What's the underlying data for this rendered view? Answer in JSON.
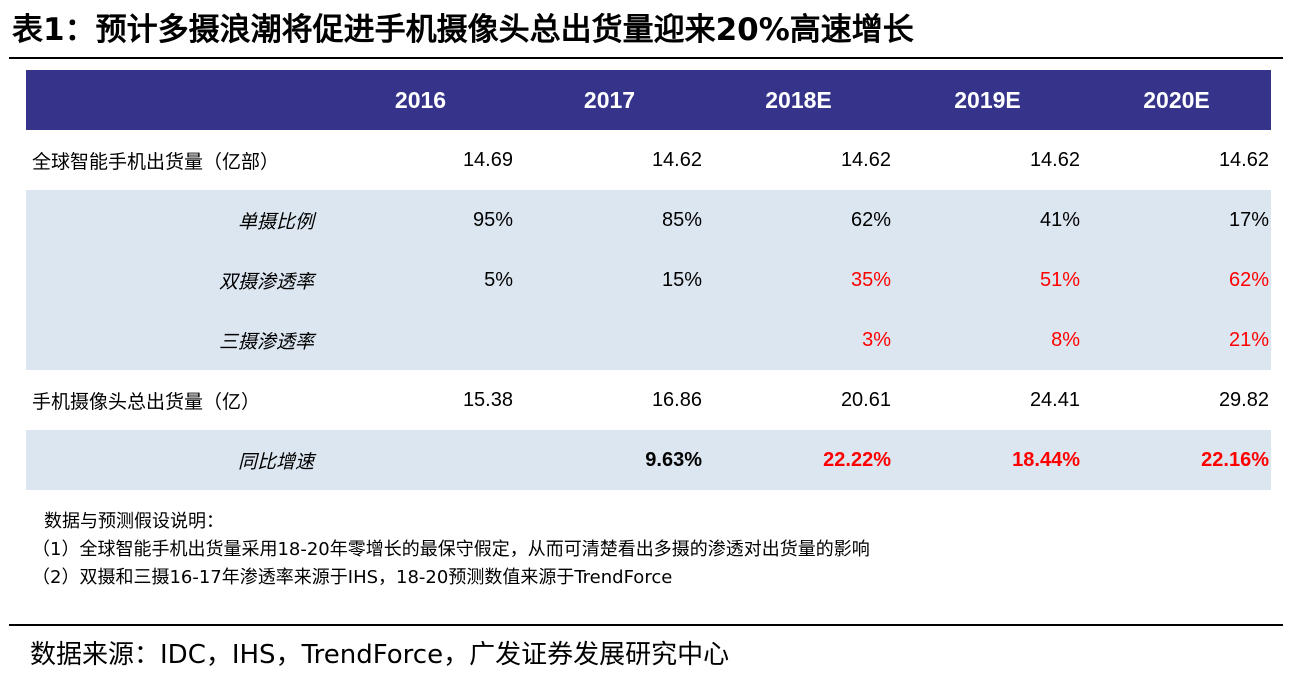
{
  "title": "表1：预计多摄浪潮将促进手机摄像头总出货量迎来20%高速增长",
  "table": {
    "years": [
      "2016",
      "2017",
      "2018E",
      "2019E",
      "2020E"
    ],
    "rows": [
      {
        "label": "全球智能手机出货量（亿部）",
        "kind": "main",
        "cells": [
          {
            "text": "14.69",
            "red": false
          },
          {
            "text": "14.62",
            "red": false
          },
          {
            "text": "14.62",
            "red": false
          },
          {
            "text": "14.62",
            "red": false
          },
          {
            "text": "14.62",
            "red": false
          }
        ]
      },
      {
        "label": "单摄比例",
        "kind": "sub",
        "cells": [
          {
            "text": "95%",
            "red": false
          },
          {
            "text": "85%",
            "red": false
          },
          {
            "text": "62%",
            "red": false
          },
          {
            "text": "41%",
            "red": false
          },
          {
            "text": "17%",
            "red": false
          }
        ]
      },
      {
        "label": "双摄渗透率",
        "kind": "sub",
        "cells": [
          {
            "text": "5%",
            "red": false
          },
          {
            "text": "15%",
            "red": false
          },
          {
            "text": "35%",
            "red": true
          },
          {
            "text": "51%",
            "red": true
          },
          {
            "text": "62%",
            "red": true
          }
        ]
      },
      {
        "label": "三摄渗透率",
        "kind": "sub",
        "cells": [
          {
            "text": "",
            "red": false
          },
          {
            "text": "",
            "red": false
          },
          {
            "text": "3%",
            "red": true
          },
          {
            "text": "8%",
            "red": true
          },
          {
            "text": "21%",
            "red": true
          }
        ]
      },
      {
        "label": "手机摄像头总出货量（亿）",
        "kind": "main",
        "cells": [
          {
            "text": "15.38",
            "red": false
          },
          {
            "text": "16.86",
            "red": false
          },
          {
            "text": "20.61",
            "red": false
          },
          {
            "text": "24.41",
            "red": false
          },
          {
            "text": "29.82",
            "red": false
          }
        ]
      },
      {
        "label": "同比增速",
        "kind": "sub-bold",
        "cells": [
          {
            "text": "",
            "red": false
          },
          {
            "text": "9.63%",
            "red": false
          },
          {
            "text": "22.22%",
            "red": true
          },
          {
            "text": "18.44%",
            "red": true
          },
          {
            "text": "22.16%",
            "red": true
          }
        ]
      }
    ]
  },
  "notes": [
    "数据与预测假设说明：",
    "（1）全球智能手机出货量采用18-20年零增长的最保守假定，从而可清楚看出多摄的渗透对出货量的影响",
    "（2）双摄和三摄16-17年渗透率来源于IHS，18-20预测数值来源于TrendForce"
  ],
  "source": "数据来源：IDC，IHS，TrendForce，广发证券发展研究中心",
  "colors": {
    "header_bg": "#35348a",
    "shade_bg": "#dce6f1",
    "highlight_red": "#ff0000"
  }
}
